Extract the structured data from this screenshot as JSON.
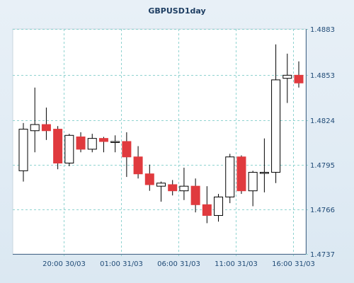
{
  "chart_data": {
    "type": "candlestick",
    "title": "GBPUSD1day",
    "ylim": [
      1.4737,
      1.4883
    ],
    "y_ticks": [
      "1.4883",
      "1.4853",
      "1.4824",
      "1.4795",
      "1.4766",
      "1.4737"
    ],
    "x_ticks": [
      "20:00 30/03",
      "01:00 31/03",
      "06:00 31/03",
      "11:00 31/03",
      "16:00 31/03"
    ],
    "grid": true,
    "colors": {
      "up": "#ffffff",
      "down": "#e03a3e",
      "outline": "#000000",
      "grid": "#8fd3d0"
    },
    "candles": [
      {
        "o": 1.4791,
        "h": 1.4822,
        "l": 1.4784,
        "c": 1.4818
      },
      {
        "o": 1.4817,
        "h": 1.4845,
        "l": 1.4803,
        "c": 1.4821
      },
      {
        "o": 1.4821,
        "h": 1.4832,
        "l": 1.4811,
        "c": 1.4817
      },
      {
        "o": 1.4818,
        "h": 1.482,
        "l": 1.4792,
        "c": 1.4796
      },
      {
        "o": 1.4796,
        "h": 1.4815,
        "l": 1.4794,
        "c": 1.4814
      },
      {
        "o": 1.4813,
        "h": 1.4816,
        "l": 1.4803,
        "c": 1.4805
      },
      {
        "o": 1.4805,
        "h": 1.4815,
        "l": 1.4803,
        "c": 1.4812
      },
      {
        "o": 1.4812,
        "h": 1.4813,
        "l": 1.4803,
        "c": 1.481
      },
      {
        "o": 1.481,
        "h": 1.4814,
        "l": 1.4803,
        "c": 1.481
      },
      {
        "o": 1.481,
        "h": 1.4816,
        "l": 1.4787,
        "c": 1.48
      },
      {
        "o": 1.48,
        "h": 1.4807,
        "l": 1.4786,
        "c": 1.4789
      },
      {
        "o": 1.4789,
        "h": 1.4795,
        "l": 1.4778,
        "c": 1.4782
      },
      {
        "o": 1.4781,
        "h": 1.4784,
        "l": 1.4771,
        "c": 1.4783
      },
      {
        "o": 1.4782,
        "h": 1.4785,
        "l": 1.4775,
        "c": 1.4778
      },
      {
        "o": 1.4778,
        "h": 1.4793,
        "l": 1.4772,
        "c": 1.4781
      },
      {
        "o": 1.4781,
        "h": 1.4786,
        "l": 1.4764,
        "c": 1.4769
      },
      {
        "o": 1.4769,
        "h": 1.4781,
        "l": 1.4757,
        "c": 1.4762
      },
      {
        "o": 1.4762,
        "h": 1.4776,
        "l": 1.4758,
        "c": 1.4774
      },
      {
        "o": 1.4774,
        "h": 1.4802,
        "l": 1.477,
        "c": 1.48
      },
      {
        "o": 1.48,
        "h": 1.4801,
        "l": 1.4776,
        "c": 1.4778
      },
      {
        "o": 1.4778,
        "h": 1.4791,
        "l": 1.4768,
        "c": 1.479
      },
      {
        "o": 1.479,
        "h": 1.4812,
        "l": 1.4777,
        "c": 1.479
      },
      {
        "o": 1.479,
        "h": 1.4873,
        "l": 1.4783,
        "c": 1.485
      },
      {
        "o": 1.4851,
        "h": 1.4867,
        "l": 1.4835,
        "c": 1.4853
      },
      {
        "o": 1.4853,
        "h": 1.4862,
        "l": 1.4845,
        "c": 1.4848
      }
    ]
  }
}
